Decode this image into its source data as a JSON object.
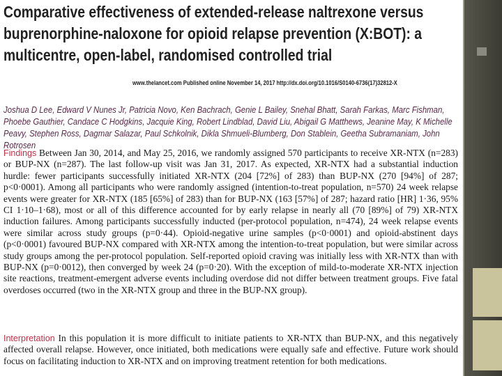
{
  "paper": {
    "title": "Comparative effectiveness of extended-release naltrexone versus buprenorphine-naloxone for opioid relapse prevention (X:BOT): a multicentre, open-label, randomised controlled trial",
    "citation": "www.thelancet.com Published online November 14, 2017 http://dx.doi.org/10.1016/S0140-6736(17)32812-X",
    "authors": "Joshua D Lee, Edward V Nunes Jr, Patricia Novo, Ken Bachrach, Genie L Bailey, Snehal Bhatt, Sarah Farkas, Marc Fishman, Phoebe Gauthier, Candace C Hodgkins, Jacquie King, Robert Lindblad, David Liu, Abigail G Matthews, Jeanine May, K Michelle Peavy, Stephen Ross, Dagmar Salazar, Paul Schkolnik, Dikla Shmueli-Blumberg, Don Stablein, Geetha Subramaniam, John Rotrosen",
    "sections": [
      {
        "label": "Findings",
        "text": "Between Jan 30, 2014, and May 25, 2016, we randomly assigned 570 participants to receive XR-NTX (n=283) or BUP-NX (n=287). The last follow-up visit was Jan 31, 2017. As expected, XR-NTX had a substantial induction hurdle: fewer participants successfully initiated XR-NTX (204 [72%] of 283) than BUP-NX (270 [94%] of 287; p<0·0001). Among all participants who were randomly assigned (intention-to-treat population, n=570) 24 week relapse events were greater for XR-NTX (185 [65%] of 283) than for BUP-NX (163 [57%] of 287; hazard ratio [HR] 1·36, 95% CI 1·10–1·68), most or all of this difference accounted for by early relapse in nearly all (70 [89%] of 79) XR-NTX induction failures. Among participants successfully inducted (per-protocol population, n=474), 24 week relapse events were similar across study groups (p=0·44). Opioid-negative urine samples (p<0·0001) and opioid-abstinent days (p<0·0001) favoured BUP-NX compared with XR-NTX among the intention-to-treat population, but were similar across study groups among the per-protocol population. Self-reported opioid craving was initially less with XR-NTX than with BUP-NX (p=0·0012), then converged by week 24 (p=0·20). With the exception of mild-to-moderate XR-NTX injection site reactions, treatment-emergent adverse events including overdose did not differ between treatment groups. Five fatal overdoses occurred (two in the XR-NTX group and three in the BUP-NX group)."
      },
      {
        "label": "Interpretation",
        "text": "In this population it is more difficult to initiate patients to XR-NTX than BUP-NX, and this negatively affected overall relapse. However, once initiated, both medications were equally safe and effective. Future work should focus on facilitating induction to XR-NTX and on improving treatment retention for both medications."
      }
    ]
  }
}
